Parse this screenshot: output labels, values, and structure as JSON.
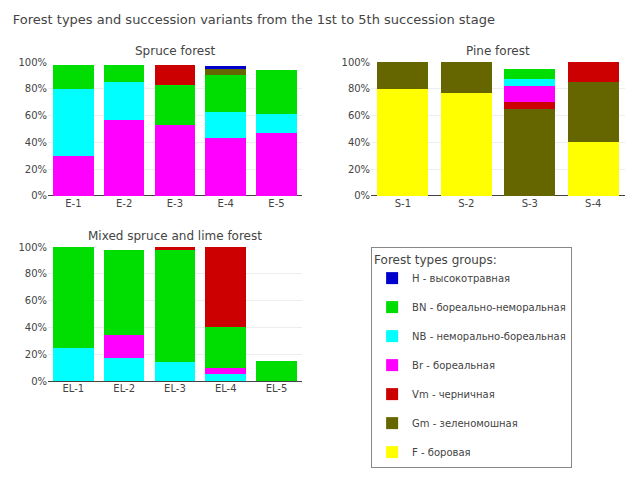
{
  "title": "Forest types and succession variants from the 1st to 5th succession stage",
  "legend_title": "Forest types groups:",
  "legend_entries": [
    "H - высокотравная",
    "BN - бореально-неморальная",
    "NB - неморально-бореальная",
    "Br - бореальная",
    "Vm - черничная",
    "Gm - зеленомошная",
    "F - боровая"
  ],
  "chart_data": [
    {
      "type": "bar",
      "stacked": true,
      "title": "Spruce forest",
      "categories": [
        "E-1",
        "E-2",
        "E-3",
        "E-4",
        "E-5"
      ],
      "series": [
        {
          "name": "Br - бореальная",
          "color": "#FF00FF",
          "values": [
            30,
            57,
            53,
            43,
            47
          ]
        },
        {
          "name": "NB - неморально-бореальная",
          "color": "#00FFFF",
          "values": [
            50,
            28,
            0,
            20,
            14
          ]
        },
        {
          "name": "BN - бореально-неморальная",
          "color": "#00DD00",
          "values": [
            18,
            13,
            30,
            27,
            33
          ]
        },
        {
          "name": "Vm - черничная",
          "color": "#CC0000",
          "values": [
            0,
            0,
            15,
            0,
            0
          ]
        },
        {
          "name": "Gm - зеленомошная",
          "color": "#666600",
          "values": [
            0,
            0,
            0,
            5,
            0
          ]
        },
        {
          "name": "H - высокотравная",
          "color": "#0000CC",
          "values": [
            0,
            0,
            0,
            2,
            0
          ]
        }
      ],
      "ylim": [
        0,
        100
      ],
      "yticks": [
        {
          "value": 0,
          "label": "0%"
        },
        {
          "value": 20,
          "label": "20%"
        },
        {
          "value": 40,
          "label": "40%"
        },
        {
          "value": 60,
          "label": "60%"
        },
        {
          "value": 80,
          "label": "80%"
        },
        {
          "value": 100,
          "label": "100%"
        }
      ],
      "grid": true
    },
    {
      "type": "bar",
      "stacked": true,
      "title": "Pine forest",
      "categories": [
        "S-1",
        "S-2",
        "S-3",
        "S-4"
      ],
      "series": [
        {
          "name": "F - боровая",
          "color": "#FFFF00",
          "values": [
            80,
            77,
            0,
            40
          ]
        },
        {
          "name": "Gm - зеленомошная",
          "color": "#666600",
          "values": [
            20,
            23,
            65,
            45
          ]
        },
        {
          "name": "Vm - черничная",
          "color": "#CC0000",
          "values": [
            0,
            0,
            5,
            15
          ]
        },
        {
          "name": "Br - бореальная",
          "color": "#FF00FF",
          "values": [
            0,
            0,
            12,
            0
          ]
        },
        {
          "name": "NB - неморально-бореальная",
          "color": "#00FFFF",
          "values": [
            0,
            0,
            5,
            0
          ]
        },
        {
          "name": "BN - бореально-неморальная",
          "color": "#00DD00",
          "values": [
            0,
            0,
            8,
            0
          ]
        }
      ],
      "ylim": [
        0,
        100
      ],
      "yticks": [
        {
          "value": 0,
          "label": "0%"
        },
        {
          "value": 20,
          "label": "20%"
        },
        {
          "value": 40,
          "label": "40%"
        },
        {
          "value": 60,
          "label": "60%"
        },
        {
          "value": 80,
          "label": "80%"
        },
        {
          "value": 100,
          "label": "100%"
        }
      ],
      "grid": true
    },
    {
      "type": "bar",
      "stacked": true,
      "title": "Mixed spruce and lime forest",
      "categories": [
        "EL-1",
        "EL-2",
        "EL-3",
        "EL-4",
        "EL-5"
      ],
      "series": [
        {
          "name": "NB - неморально-бореальная",
          "color": "#00FFFF",
          "values": [
            25,
            17,
            14,
            5,
            0
          ]
        },
        {
          "name": "Br - бореальная",
          "color": "#FF00FF",
          "values": [
            0,
            17,
            0,
            5,
            0
          ]
        },
        {
          "name": "BN - бореально-неморальная",
          "color": "#00DD00",
          "values": [
            75,
            64,
            84,
            30,
            15
          ]
        },
        {
          "name": "Vm - черничная",
          "color": "#CC0000",
          "values": [
            0,
            0,
            2,
            60,
            0
          ]
        }
      ],
      "ylim": [
        0,
        100
      ],
      "yticks": [
        {
          "value": 0,
          "label": "0%"
        },
        {
          "value": 20,
          "label": "20%"
        },
        {
          "value": 40,
          "label": "40%"
        },
        {
          "value": 60,
          "label": "60%"
        },
        {
          "value": 80,
          "label": "80%"
        },
        {
          "value": 100,
          "label": "100%"
        }
      ],
      "grid": true
    }
  ]
}
